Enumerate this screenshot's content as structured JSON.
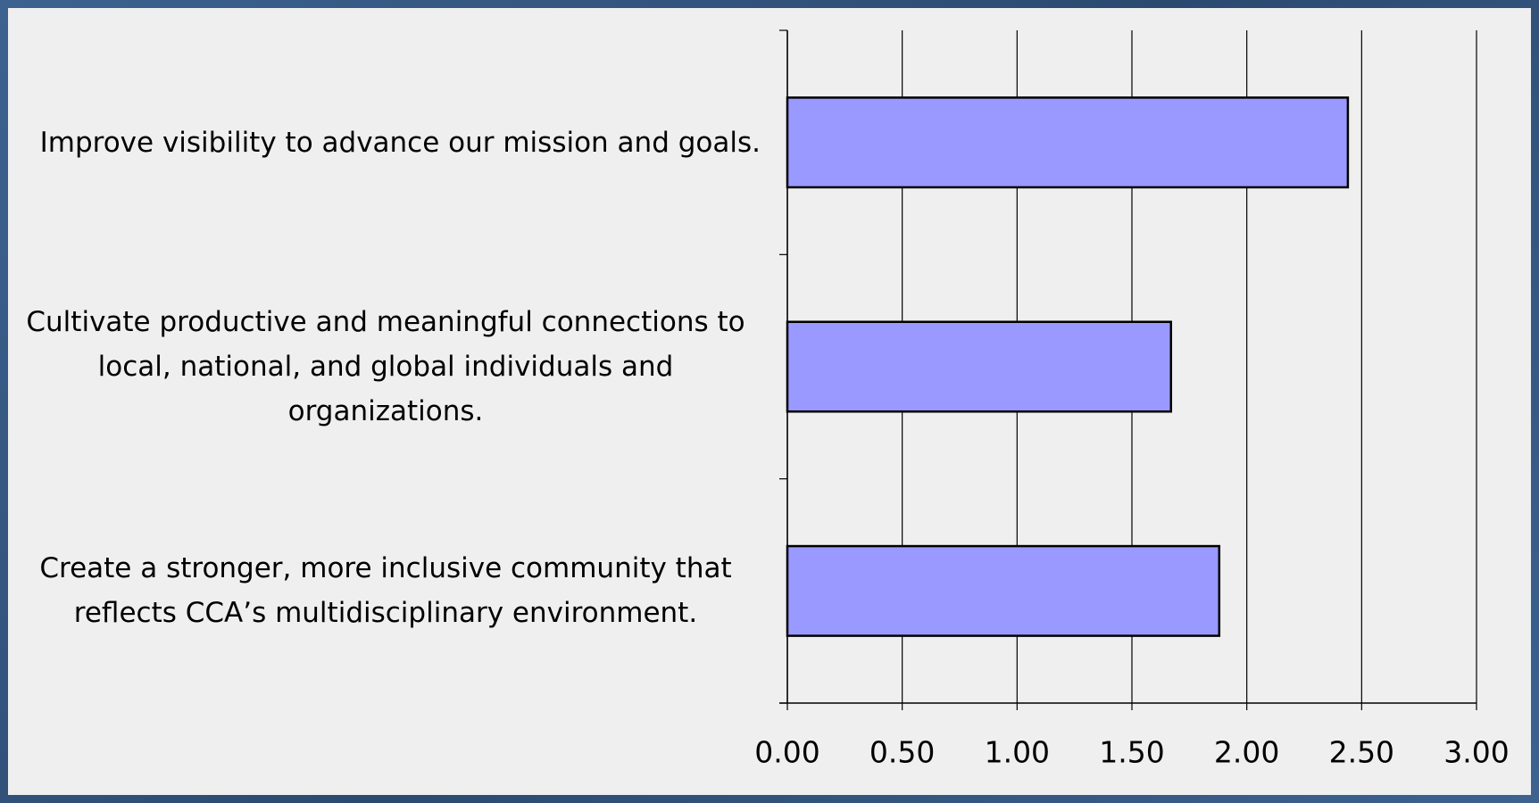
{
  "chart_data": {
    "type": "bar",
    "orientation": "horizontal",
    "categories": [
      "Improve visibility to advance our mission and goals.",
      "Cultivate productive and meaningful connections to local, national, and global individuals and organizations.",
      "Create a stronger, more inclusive community that reflects CCA’s multidisciplinary environment."
    ],
    "values": [
      2.44,
      1.67,
      1.88
    ],
    "color": "#9999ff",
    "xlim": [
      0,
      3
    ],
    "xticks": [
      {
        "value": 0,
        "label": "0.00"
      },
      {
        "value": 0.5,
        "label": "0.50"
      },
      {
        "value": 1,
        "label": "1.00"
      },
      {
        "value": 1.5,
        "label": "1.50"
      },
      {
        "value": 2,
        "label": "2.00"
      },
      {
        "value": 2.5,
        "label": "2.50"
      },
      {
        "value": 3,
        "label": "3.00"
      }
    ],
    "grid": true
  }
}
